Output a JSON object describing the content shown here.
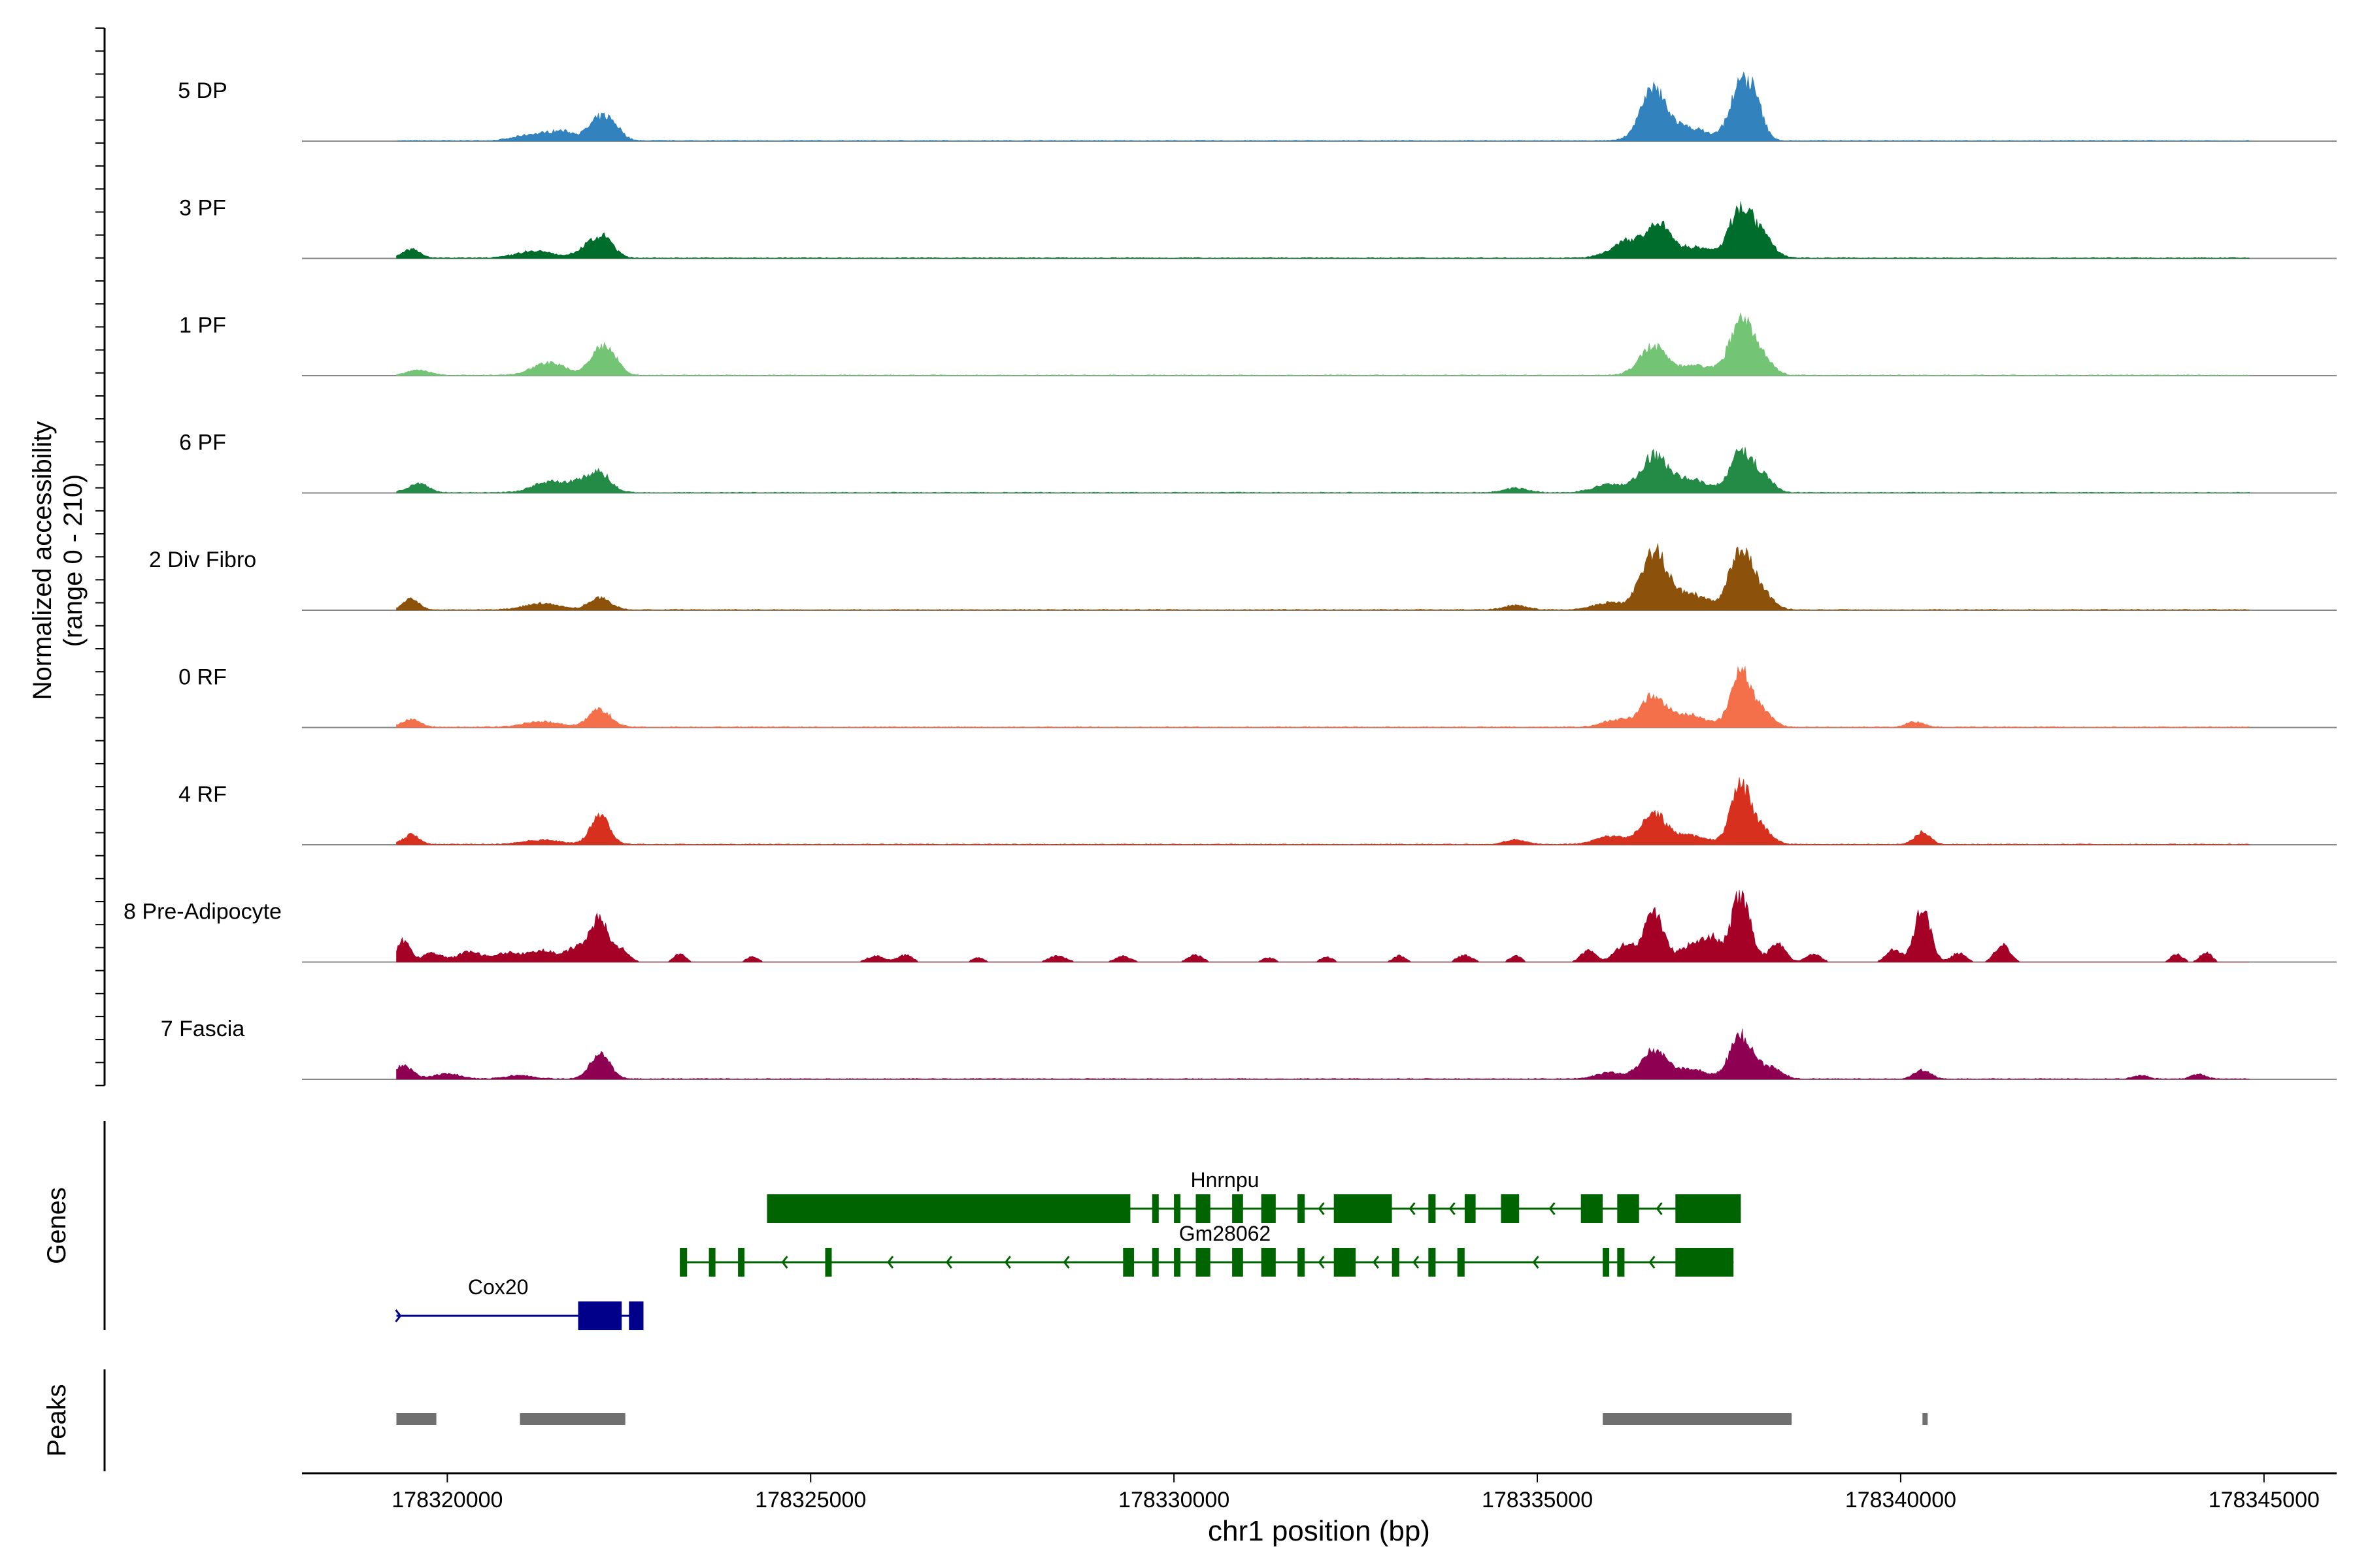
{
  "chart_data": {
    "type": "area",
    "title": "",
    "chromosome": "chr1",
    "xlabel": "chr1 position (bp)",
    "ylabel": "Normalized accessibility",
    "ylabel_range": "(range 0 - 210)",
    "ylim": [
      0,
      210
    ],
    "xlim": [
      178318000,
      178346000
    ],
    "x_ticks": [
      178320000,
      178325000,
      178330000,
      178335000,
      178340000,
      178345000
    ],
    "x_tick_labels": [
      "178320000",
      "178325000",
      "178330000",
      "178335000",
      "178340000",
      "178345000"
    ],
    "track_start": 178319300,
    "track_end": 178344800,
    "series": [
      {
        "name": "5 DP",
        "color": "#3182BD",
        "peaks": [
          [
            178321200,
            14,
            250
          ],
          [
            178321600,
            18,
            180
          ],
          [
            178322100,
            48,
            150
          ],
          [
            178322300,
            22,
            120
          ],
          [
            178336600,
            110,
            180
          ],
          [
            178337100,
            28,
            250
          ],
          [
            178337800,
            118,
            150
          ],
          [
            178338000,
            60,
            120
          ]
        ]
      },
      {
        "name": "3 PF",
        "color": "#006D2C",
        "peaks": [
          [
            178319500,
            20,
            120
          ],
          [
            178321200,
            16,
            250
          ],
          [
            178322000,
            34,
            170
          ],
          [
            178322200,
            28,
            120
          ],
          [
            178336300,
            40,
            250
          ],
          [
            178336700,
            62,
            160
          ],
          [
            178337200,
            24,
            220
          ],
          [
            178337800,
            112,
            150
          ],
          [
            178338100,
            45,
            150
          ]
        ]
      },
      {
        "name": "1 PF",
        "color": "#74C476",
        "peaks": [
          [
            178319600,
            12,
            150
          ],
          [
            178321400,
            28,
            220
          ],
          [
            178322100,
            58,
            140
          ],
          [
            178322300,
            24,
            110
          ],
          [
            178336600,
            64,
            190
          ],
          [
            178337200,
            22,
            220
          ],
          [
            178337800,
            128,
            150
          ],
          [
            178338100,
            40,
            140
          ]
        ]
      },
      {
        "name": "6 PF",
        "color": "#238B45",
        "peaks": [
          [
            178319600,
            20,
            140
          ],
          [
            178321400,
            24,
            220
          ],
          [
            178321800,
            20,
            160
          ],
          [
            178322100,
            42,
            150
          ],
          [
            178334700,
            10,
            160
          ],
          [
            178336000,
            18,
            220
          ],
          [
            178336600,
            80,
            180
          ],
          [
            178337100,
            30,
            240
          ],
          [
            178337800,
            88,
            150
          ],
          [
            178338100,
            36,
            140
          ]
        ]
      },
      {
        "name": "2 Div Fibro",
        "color": "#8C510A",
        "peaks": [
          [
            178319500,
            24,
            110
          ],
          [
            178321300,
            14,
            250
          ],
          [
            178322100,
            26,
            150
          ],
          [
            178334700,
            10,
            160
          ],
          [
            178336000,
            16,
            220
          ],
          [
            178336600,
            130,
            170
          ],
          [
            178337100,
            36,
            240
          ],
          [
            178337800,
            138,
            150
          ],
          [
            178338100,
            34,
            150
          ]
        ]
      },
      {
        "name": "0 RF",
        "color": "#F4704A",
        "peaks": [
          [
            178319500,
            18,
            120
          ],
          [
            178321300,
            12,
            250
          ],
          [
            178322100,
            40,
            150
          ],
          [
            178336100,
            16,
            200
          ],
          [
            178336600,
            68,
            170
          ],
          [
            178337100,
            26,
            230
          ],
          [
            178337800,
            120,
            140
          ],
          [
            178338100,
            32,
            140
          ],
          [
            178340200,
            12,
            120
          ]
        ]
      },
      {
        "name": "4 RF",
        "color": "#D7301F",
        "peaks": [
          [
            178319500,
            22,
            110
          ],
          [
            178321300,
            10,
            250
          ],
          [
            178322100,
            64,
            130
          ],
          [
            178334700,
            10,
            150
          ],
          [
            178336000,
            18,
            200
          ],
          [
            178336600,
            68,
            170
          ],
          [
            178337100,
            20,
            220
          ],
          [
            178337800,
            130,
            140
          ],
          [
            178338100,
            30,
            140
          ],
          [
            178340300,
            28,
            110
          ]
        ]
      },
      {
        "name": "8 Pre-Adipocyte",
        "color": "#A50026",
        "peaks": [
          [
            178319400,
            48,
            90
          ],
          [
            178319800,
            20,
            140
          ],
          [
            178320300,
            22,
            160
          ],
          [
            178320800,
            20,
            180
          ],
          [
            178321300,
            26,
            190
          ],
          [
            178321800,
            34,
            150
          ],
          [
            178322100,
            92,
            120
          ],
          [
            178322400,
            30,
            100
          ],
          [
            178323200,
            18,
            80
          ],
          [
            178324200,
            12,
            80
          ],
          [
            178325900,
            14,
            120
          ],
          [
            178326300,
            16,
            100
          ],
          [
            178327300,
            10,
            80
          ],
          [
            178328400,
            14,
            120
          ],
          [
            178329300,
            14,
            100
          ],
          [
            178330300,
            16,
            100
          ],
          [
            178331300,
            10,
            80
          ],
          [
            178332100,
            12,
            80
          ],
          [
            178333100,
            14,
            80
          ],
          [
            178334000,
            16,
            100
          ],
          [
            178334700,
            14,
            80
          ],
          [
            178335700,
            26,
            100
          ],
          [
            178336200,
            40,
            130
          ],
          [
            178336600,
            118,
            130
          ],
          [
            178337100,
            36,
            160
          ],
          [
            178337400,
            50,
            120
          ],
          [
            178337800,
            152,
            130
          ],
          [
            178338300,
            42,
            110
          ],
          [
            178338800,
            18,
            100
          ],
          [
            178339900,
            28,
            100
          ],
          [
            178340300,
            120,
            110
          ],
          [
            178340800,
            20,
            100
          ],
          [
            178341400,
            40,
            100
          ],
          [
            178343800,
            18,
            80
          ],
          [
            178344200,
            22,
            80
          ]
        ]
      },
      {
        "name": "7 Fascia",
        "color": "#8E0152",
        "peaks": [
          [
            178319400,
            30,
            120
          ],
          [
            178320000,
            12,
            180
          ],
          [
            178321000,
            8,
            200
          ],
          [
            178322100,
            54,
            140
          ],
          [
            178336000,
            14,
            200
          ],
          [
            178336600,
            62,
            170
          ],
          [
            178337100,
            22,
            220
          ],
          [
            178337800,
            96,
            150
          ],
          [
            178338200,
            28,
            150
          ],
          [
            178340300,
            20,
            110
          ],
          [
            178343300,
            8,
            100
          ],
          [
            178344100,
            10,
            100
          ]
        ]
      }
    ],
    "genes": {
      "label": "Genes",
      "items": [
        {
          "name": "Hnrnpu",
          "strand": "-",
          "color": "#006400",
          "start": 178324400,
          "end": 178337800,
          "exons": [
            [
              178324400,
              178329400
            ],
            [
              178329700,
              178329750
            ],
            [
              178330000,
              178330080
            ],
            [
              178330300,
              178330500
            ],
            [
              178330800,
              178330950
            ],
            [
              178331200,
              178331400
            ],
            [
              178331700,
              178331800
            ],
            [
              178332200,
              178333000
            ],
            [
              178333500,
              178333600
            ],
            [
              178334000,
              178334150
            ],
            [
              178334500,
              178334750
            ],
            [
              178335600,
              178335900
            ],
            [
              178336100,
              178336400
            ],
            [
              178336900,
              178337800
            ]
          ]
        },
        {
          "name": "Gm28062",
          "strand": "-",
          "color": "#006400",
          "start": 178323200,
          "end": 178337700,
          "exons": [
            [
              178323200,
              178323300
            ],
            [
              178323600,
              178323650
            ],
            [
              178324000,
              178324030
            ],
            [
              178325200,
              178325260
            ],
            [
              178329300,
              178329450
            ],
            [
              178329700,
              178329750
            ],
            [
              178330000,
              178330080
            ],
            [
              178330300,
              178330500
            ],
            [
              178330800,
              178330950
            ],
            [
              178331200,
              178331400
            ],
            [
              178331700,
              178331800
            ],
            [
              178332200,
              178332500
            ],
            [
              178333000,
              178333100
            ],
            [
              178333500,
              178333600
            ],
            [
              178333900,
              178334000
            ],
            [
              178335900,
              178335950
            ],
            [
              178336100,
              178336200
            ],
            [
              178336900,
              178337700
            ]
          ]
        },
        {
          "name": "Cox20",
          "strand": "+",
          "color": "#00008B",
          "start": 178319300,
          "end": 178322600,
          "exons": [
            [
              178321800,
              178322400
            ],
            [
              178322500,
              178322700
            ]
          ]
        }
      ]
    },
    "peaks_track": {
      "label": "Peaks",
      "color": "#707070",
      "regions": [
        [
          178319300,
          178319850
        ],
        [
          178321000,
          178322450
        ],
        [
          178335900,
          178338500
        ],
        [
          178340300,
          178340370
        ]
      ]
    }
  }
}
